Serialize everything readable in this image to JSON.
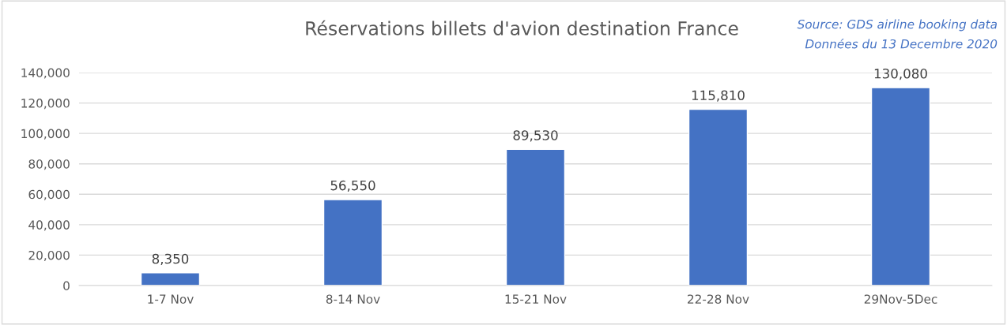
{
  "chart_data": {
    "type": "bar",
    "title": "Réservations billets d'avion destination France",
    "annotations": [
      "Source: GDS airline booking data",
      "Données du 13 Decembre 2020"
    ],
    "categories": [
      "1-7 Nov",
      "8-14 Nov",
      "15-21 Nov",
      "22-28 Nov",
      "29Nov-5Dec"
    ],
    "values": [
      8350,
      56550,
      89530,
      115810,
      130080
    ],
    "value_labels": [
      "8,350",
      "56,550",
      "89,530",
      "115,810",
      "130,080"
    ],
    "color": "#4472c4",
    "ylim": [
      0,
      140000
    ],
    "yticks": [
      {
        "value": 0,
        "label": "0"
      },
      {
        "value": 20000,
        "label": "20,000"
      },
      {
        "value": 40000,
        "label": "40,000"
      },
      {
        "value": 60000,
        "label": "60,000"
      },
      {
        "value": 80000,
        "label": "80,000"
      },
      {
        "value": 100000,
        "label": "100,000"
      },
      {
        "value": 120000,
        "label": "120,000"
      },
      {
        "value": 140000,
        "label": "140,000"
      }
    ],
    "grid": "y",
    "legend": false
  }
}
